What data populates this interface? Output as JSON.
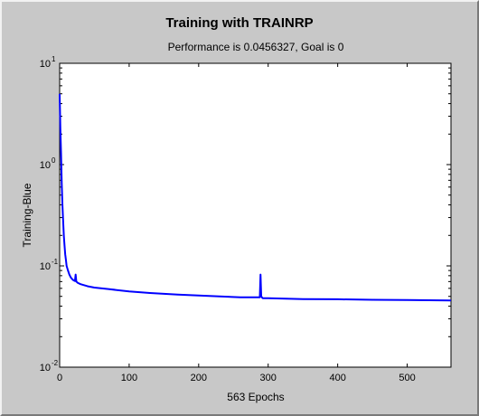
{
  "chart_data": {
    "type": "line",
    "title": "Training with TRAINRP",
    "subtitle": "Performance is 0.0456327, Goal is 0",
    "xlabel": "563 Epochs",
    "ylabel": "Training-Blue",
    "xlim": [
      0,
      563
    ],
    "ylim": [
      0.01,
      10
    ],
    "yscale": "log",
    "x_ticks": [
      0,
      100,
      200,
      300,
      400,
      500
    ],
    "x_tick_labels": [
      "0",
      "100",
      "200",
      "300",
      "400",
      "500"
    ],
    "y_ticks": [
      {
        "value": 10,
        "base": "10",
        "exp": "1"
      },
      {
        "value": 1,
        "base": "10",
        "exp": "0"
      },
      {
        "value": 0.1,
        "base": "10",
        "exp": "-1"
      },
      {
        "value": 0.01,
        "base": "10",
        "exp": "-2"
      }
    ],
    "grid": false,
    "series": [
      {
        "color": "#0000ff",
        "x": [
          0,
          1,
          2,
          3,
          4,
          5,
          6,
          7,
          8,
          9,
          10,
          12,
          14,
          16,
          18,
          20,
          22,
          23,
          24,
          25,
          26,
          30,
          40,
          50,
          70,
          100,
          130,
          150,
          170,
          200,
          230,
          260,
          288,
          289,
          290,
          291,
          292,
          300,
          350,
          400,
          450,
          500,
          563
        ],
        "y": [
          5.0,
          2.3,
          1.3,
          0.65,
          0.4,
          0.28,
          0.2,
          0.16,
          0.13,
          0.115,
          0.1,
          0.09,
          0.082,
          0.077,
          0.074,
          0.072,
          0.071,
          0.082,
          0.07,
          0.069,
          0.068,
          0.066,
          0.063,
          0.061,
          0.059,
          0.056,
          0.054,
          0.053,
          0.052,
          0.051,
          0.05,
          0.049,
          0.049,
          0.082,
          0.05,
          0.049,
          0.048,
          0.048,
          0.047,
          0.0468,
          0.0462,
          0.046,
          0.0456
        ]
      }
    ]
  }
}
